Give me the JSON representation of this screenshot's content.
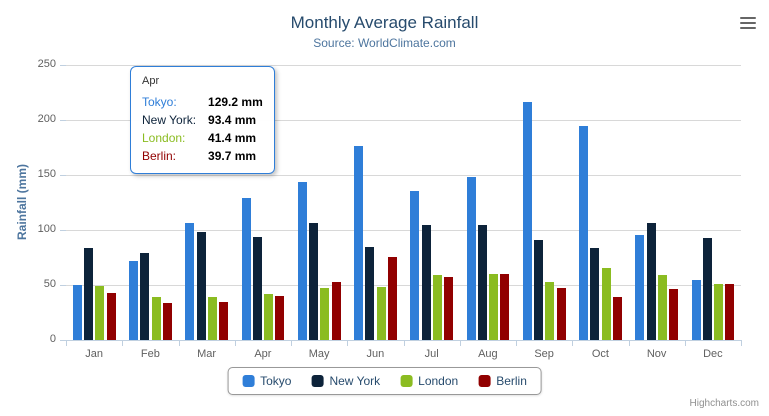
{
  "chart_data": {
    "type": "bar",
    "orientation": "vertical-columns",
    "title": "Monthly Average Rainfall",
    "subtitle": "Source: WorldClimate.com",
    "categories": [
      "Jan",
      "Feb",
      "Mar",
      "Apr",
      "May",
      "Jun",
      "Jul",
      "Aug",
      "Sep",
      "Oct",
      "Nov",
      "Dec"
    ],
    "series": [
      {
        "name": "Tokyo",
        "color": "#2f7ed8",
        "values": [
          49.9,
          71.5,
          106.4,
          129.2,
          144.0,
          176.0,
          135.6,
          148.5,
          216.4,
          194.1,
          95.6,
          54.4
        ]
      },
      {
        "name": "New York",
        "color": "#0d233a",
        "values": [
          83.6,
          78.8,
          98.5,
          93.4,
          106.0,
          84.5,
          105.0,
          104.3,
          91.2,
          83.5,
          106.6,
          92.3
        ]
      },
      {
        "name": "London",
        "color": "#8bbc21",
        "values": [
          48.9,
          38.8,
          39.3,
          41.4,
          47.0,
          48.3,
          59.0,
          59.6,
          52.4,
          65.2,
          59.3,
          51.2
        ]
      },
      {
        "name": "Berlin",
        "color": "#910000",
        "values": [
          42.4,
          33.2,
          34.5,
          39.7,
          52.6,
          75.5,
          57.4,
          60.4,
          47.6,
          39.1,
          46.8,
          51.1
        ]
      }
    ],
    "xlabel": "",
    "ylabel": "Rainfall (mm)",
    "ylim": [
      0,
      250
    ],
    "yticks": [
      0,
      50,
      100,
      150,
      200,
      250
    ],
    "grid": true,
    "value_suffix": " mm",
    "legend_position": "bottom"
  },
  "tooltip": {
    "category": "Apr",
    "rows": [
      {
        "name_label": "Tokyo:",
        "value_label": "129.2 mm"
      },
      {
        "name_label": "New York:",
        "value_label": "93.4 mm"
      },
      {
        "name_label": "London:",
        "value_label": "41.4 mm"
      },
      {
        "name_label": "Berlin:",
        "value_label": "39.7 mm"
      }
    ]
  },
  "icons": {
    "menu": "hamburger-menu-icon"
  },
  "credits": {
    "label": "Highcharts.com"
  }
}
